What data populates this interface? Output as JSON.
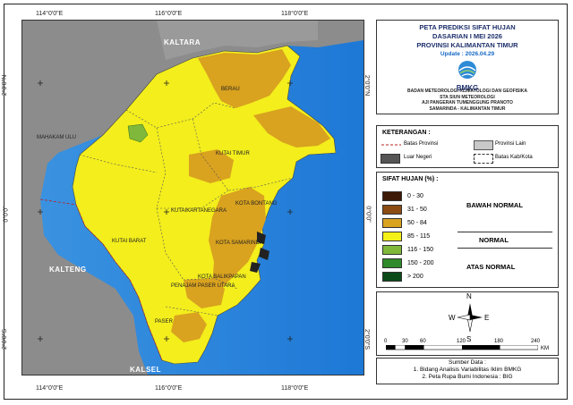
{
  "title_lines": [
    "PETA PREDIKSI SIFAT HUJAN",
    "DASARIAN I MEI 2026",
    "PROVINSI KALIMANTAN TIMUR"
  ],
  "update": "Update : 2026.04.29",
  "logo_text": "BMKG",
  "agency_lines": [
    "BADAN METEOROLOGI KLIMATOLOGI DAN GEOFISIKA",
    "STA SIUN METEOROLOGI",
    "AJI PANGERAN TUMENGGUNG PRANOTO",
    "SAMARINDA - KALIMANTAN TIMUR"
  ],
  "lon_labels": [
    "114°0'0\"E",
    "116°0'0\"E",
    "118°0'0\"E"
  ],
  "lat_labels": [
    "2°0'0\"N",
    "0°0'0\"",
    "2°0'0\"S"
  ],
  "map_labels": {
    "kaltara": "KALTARA",
    "kalteng": "KALTENG",
    "kalsel": "KALSEL",
    "berau": "BERAU",
    "kutai_timur": "KUTAI TIMUR",
    "mahakam_ulu": "MAHAKAM ULU",
    "kutai_kartanegara": "KUTAIKARTANEGARA",
    "kota_bontang": "KOTA BONTANG",
    "kutai_barat": "KUTAI BARAT",
    "kota_samarinda": "KOTA SAMARINDA",
    "kota_balikpapan": "KOTA BALIKPAPAN",
    "penajam": "PENAJAM PASER UTARA",
    "paser": "PASER"
  },
  "keterangan": {
    "title": "KETERANGAN :",
    "items": [
      "Batas Provinsi",
      "Provinsi Lain",
      "Luar Negeri",
      "Batas Kab/Kota"
    ]
  },
  "sifat_hujan": {
    "title": "SIFAT HUJAN (%) :",
    "classes": [
      {
        "label": "0 - 30",
        "color": "#3d1a06"
      },
      {
        "label": "31 - 50",
        "color": "#8b4c13"
      },
      {
        "label": "50 - 84",
        "color": "#d9a21f"
      },
      {
        "label": "85 - 115",
        "color": "#f5f016"
      },
      {
        "label": "116 - 150",
        "color": "#7fb83a"
      },
      {
        "label": "150 - 200",
        "color": "#2f8a2a"
      },
      {
        "label": "> 200",
        "color": "#0b4a18"
      }
    ],
    "categories": [
      "BAWAH NORMAL",
      "NORMAL",
      "ATAS NORMAL"
    ]
  },
  "north_arrow": {
    "n": "N",
    "s": "S",
    "e": "E",
    "w": "W"
  },
  "scale": {
    "ticks": [
      "0",
      "30",
      "60",
      "120",
      "180",
      "240"
    ],
    "unit": "KM"
  },
  "source": {
    "title": "Sumber Data :",
    "lines": [
      "1. Bidang Analisis Variabilitas Iklim BMKG",
      "2. Peta Rupa Bumi Indonesia : BIG"
    ]
  }
}
